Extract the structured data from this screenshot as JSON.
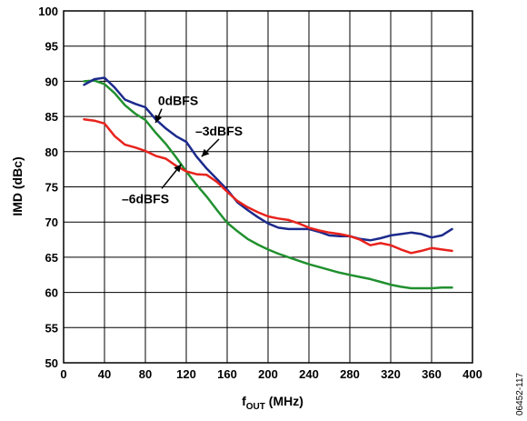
{
  "chart_data": {
    "type": "line",
    "title": "",
    "xlabel_main": "f",
    "xlabel_sub": "OUT",
    "xlabel_unit": " (MHz)",
    "ylabel": "IMD (dBc)",
    "xlim": [
      0,
      400
    ],
    "ylim": [
      50,
      100
    ],
    "x_ticks": [
      0,
      40,
      80,
      120,
      160,
      200,
      240,
      280,
      320,
      360,
      400
    ],
    "y_ticks": [
      50,
      55,
      60,
      65,
      70,
      75,
      80,
      85,
      90,
      95,
      100
    ],
    "grid": true,
    "figure_id": "06452-117",
    "series": [
      {
        "name": "0dBFS",
        "color": "#21902f",
        "points": [
          [
            20,
            90
          ],
          [
            30,
            90.1
          ],
          [
            40,
            89.6
          ],
          [
            50,
            88.3
          ],
          [
            60,
            86.6
          ],
          [
            70,
            85.4
          ],
          [
            80,
            84.5
          ],
          [
            90,
            82.7
          ],
          [
            100,
            81.1
          ],
          [
            110,
            79.2
          ],
          [
            120,
            77.2
          ],
          [
            130,
            75.3
          ],
          [
            140,
            73.6
          ],
          [
            150,
            71.7
          ],
          [
            160,
            69.9
          ],
          [
            170,
            68.7
          ],
          [
            180,
            67.6
          ],
          [
            190,
            66.8
          ],
          [
            200,
            66.1
          ],
          [
            210,
            65.5
          ],
          [
            220,
            65
          ],
          [
            230,
            64.5
          ],
          [
            240,
            64
          ],
          [
            250,
            63.6
          ],
          [
            260,
            63.2
          ],
          [
            270,
            62.8
          ],
          [
            280,
            62.5
          ],
          [
            290,
            62.2
          ],
          [
            300,
            61.9
          ],
          [
            310,
            61.5
          ],
          [
            320,
            61.1
          ],
          [
            330,
            60.8
          ],
          [
            340,
            60.6
          ],
          [
            350,
            60.6
          ],
          [
            360,
            60.6
          ],
          [
            370,
            60.7
          ],
          [
            380,
            60.7
          ]
        ]
      },
      {
        "name": "–3dBFS",
        "color": "#1c2a8c",
        "points": [
          [
            20,
            89.5
          ],
          [
            30,
            90.3
          ],
          [
            40,
            90.5
          ],
          [
            50,
            89.1
          ],
          [
            60,
            87.4
          ],
          [
            70,
            86.8
          ],
          [
            80,
            86.3
          ],
          [
            90,
            84.6
          ],
          [
            100,
            83.3
          ],
          [
            110,
            82.2
          ],
          [
            120,
            81.4
          ],
          [
            130,
            79.3
          ],
          [
            140,
            77.6
          ],
          [
            150,
            76.1
          ],
          [
            160,
            74.6
          ],
          [
            170,
            72.8
          ],
          [
            180,
            71.7
          ],
          [
            190,
            70.7
          ],
          [
            200,
            69.8
          ],
          [
            210,
            69.2
          ],
          [
            220,
            69
          ],
          [
            230,
            69
          ],
          [
            240,
            69
          ],
          [
            250,
            68.6
          ],
          [
            260,
            68.1
          ],
          [
            270,
            68
          ],
          [
            280,
            68
          ],
          [
            290,
            67.6
          ],
          [
            300,
            67.4
          ],
          [
            310,
            67.7
          ],
          [
            320,
            68.1
          ],
          [
            330,
            68.3
          ],
          [
            340,
            68.5
          ],
          [
            350,
            68.3
          ],
          [
            360,
            67.8
          ],
          [
            370,
            68.1
          ],
          [
            380,
            69
          ]
        ]
      },
      {
        "name": "–6dBFS",
        "color": "#e8221c",
        "points": [
          [
            20,
            84.6
          ],
          [
            30,
            84.4
          ],
          [
            40,
            84
          ],
          [
            50,
            82.2
          ],
          [
            60,
            81
          ],
          [
            70,
            80.6
          ],
          [
            80,
            80.1
          ],
          [
            90,
            79.4
          ],
          [
            100,
            79
          ],
          [
            110,
            78
          ],
          [
            120,
            77.2
          ],
          [
            130,
            76.8
          ],
          [
            140,
            76.7
          ],
          [
            150,
            75.7
          ],
          [
            160,
            74.3
          ],
          [
            170,
            73
          ],
          [
            180,
            72.1
          ],
          [
            190,
            71.4
          ],
          [
            200,
            70.8
          ],
          [
            210,
            70.5
          ],
          [
            220,
            70.3
          ],
          [
            230,
            69.8
          ],
          [
            240,
            69.2
          ],
          [
            250,
            68.8
          ],
          [
            260,
            68.5
          ],
          [
            270,
            68.3
          ],
          [
            280,
            68
          ],
          [
            290,
            67.5
          ],
          [
            300,
            66.7
          ],
          [
            310,
            67
          ],
          [
            320,
            66.7
          ],
          [
            330,
            66.1
          ],
          [
            340,
            65.6
          ],
          [
            350,
            65.9
          ],
          [
            360,
            66.3
          ],
          [
            370,
            66.1
          ],
          [
            380,
            65.9
          ]
        ]
      }
    ],
    "annotations": [
      {
        "text": "0dBFS",
        "x": 112,
        "y": 86.6,
        "arrow_to": [
          90,
          84.1
        ]
      },
      {
        "text": "–3dBFS",
        "x": 152,
        "y": 82.3,
        "arrow_to": [
          135,
          79.3
        ]
      },
      {
        "text": "–6dBFS",
        "x": 80,
        "y": 72.7,
        "arrow_to": [
          115,
          78.2
        ]
      }
    ]
  }
}
